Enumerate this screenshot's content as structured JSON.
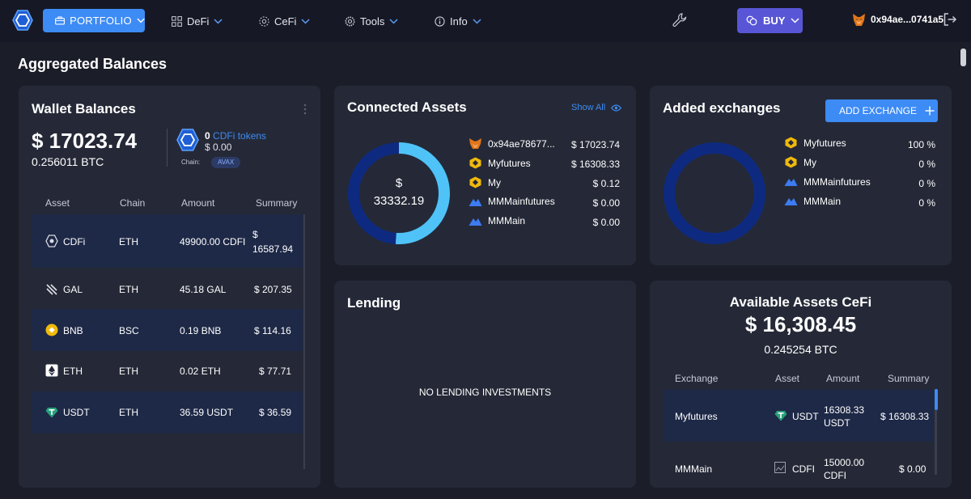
{
  "header": {
    "portfolio_label": "PORTFOLIO",
    "nav": [
      {
        "label": "DeFi"
      },
      {
        "label": "CeFi"
      },
      {
        "label": "Tools"
      },
      {
        "label": "Info"
      }
    ],
    "buy_label": "BUY",
    "wallet_address": "0x94ae...0741a5"
  },
  "page_title": "Aggregated Balances",
  "wallet": {
    "title": "Wallet Balances",
    "total_usd": "$ 17023.74",
    "total_btc": "0.256011 BTC",
    "cdfi_count": "0",
    "cdfi_label": "CDFi tokens",
    "cdfi_usd": "$ 0.00",
    "chain_label": "Chain:",
    "chain_value": "AVAX",
    "columns": [
      "Asset",
      "Chain",
      "Amount",
      "Summary"
    ],
    "rows": [
      {
        "asset": "CDFi",
        "chain": "ETH",
        "amount": "49900.00 CDFI",
        "summary_line1": "$",
        "summary_line2": "16587.94"
      },
      {
        "asset": "GAL",
        "chain": "ETH",
        "amount": "45.18 GAL",
        "summary": "$ 207.35"
      },
      {
        "asset": "BNB",
        "chain": "BSC",
        "amount": "0.19 BNB",
        "summary": "$ 114.16"
      },
      {
        "asset": "ETH",
        "chain": "ETH",
        "amount": "0.02 ETH",
        "summary": "$ 77.71"
      },
      {
        "asset": "USDT",
        "chain": "ETH",
        "amount": "36.59 USDT",
        "summary": "$ 36.59"
      }
    ]
  },
  "connected": {
    "title": "Connected Assets",
    "show_all": "Show All",
    "donut_currency": "$",
    "donut_total": "33332.19",
    "donut_share": 0.51,
    "items": [
      {
        "name": "0x94ae78677...",
        "value": "$ 17023.74",
        "icon": "metamask-icon"
      },
      {
        "name": "Myfutures",
        "value": "$ 16308.33",
        "icon": "binance-icon"
      },
      {
        "name": "My",
        "value": "$ 0.12",
        "icon": "binance-icon"
      },
      {
        "name": "MMMainfutures",
        "value": "$ 0.00",
        "icon": "mountain-icon"
      },
      {
        "name": "MMMain",
        "value": "$ 0.00",
        "icon": "mountain-icon"
      }
    ]
  },
  "exchanges": {
    "title": "Added exchanges",
    "add_label": "ADD EXCHANGE",
    "items": [
      {
        "name": "Myfutures",
        "value": "100 %",
        "icon": "binance-icon"
      },
      {
        "name": "My",
        "value": "0 %",
        "icon": "binance-icon"
      },
      {
        "name": "MMMainfutures",
        "value": "0 %",
        "icon": "mountain-icon"
      },
      {
        "name": "MMMain",
        "value": "0 %",
        "icon": "mountain-icon"
      }
    ]
  },
  "lending": {
    "title": "Lending",
    "empty": "NO LENDING INVESTMENTS"
  },
  "cefi": {
    "title": "Available Assets CeFi",
    "total_usd": "$ 16,308.45",
    "total_btc": "0.245254 BTC",
    "columns": [
      "Exchange",
      "Asset",
      "Amount",
      "Summary"
    ],
    "rows": [
      {
        "exchange": "Myfutures",
        "asset": "USDT",
        "amount_line1": "16308.33",
        "amount_line2": "USDT",
        "summary": "$ 16308.33"
      },
      {
        "exchange": "MMMain",
        "asset": "CDFI",
        "amount_line1": "15000.00",
        "amount_line2": "CDFI",
        "summary": "$ 0.00"
      }
    ]
  },
  "colors": {
    "accent": "#3d8bf5",
    "buy": "#5856d6",
    "donut_dark": "#0e2a80",
    "donut_light": "#4fc3f7"
  }
}
